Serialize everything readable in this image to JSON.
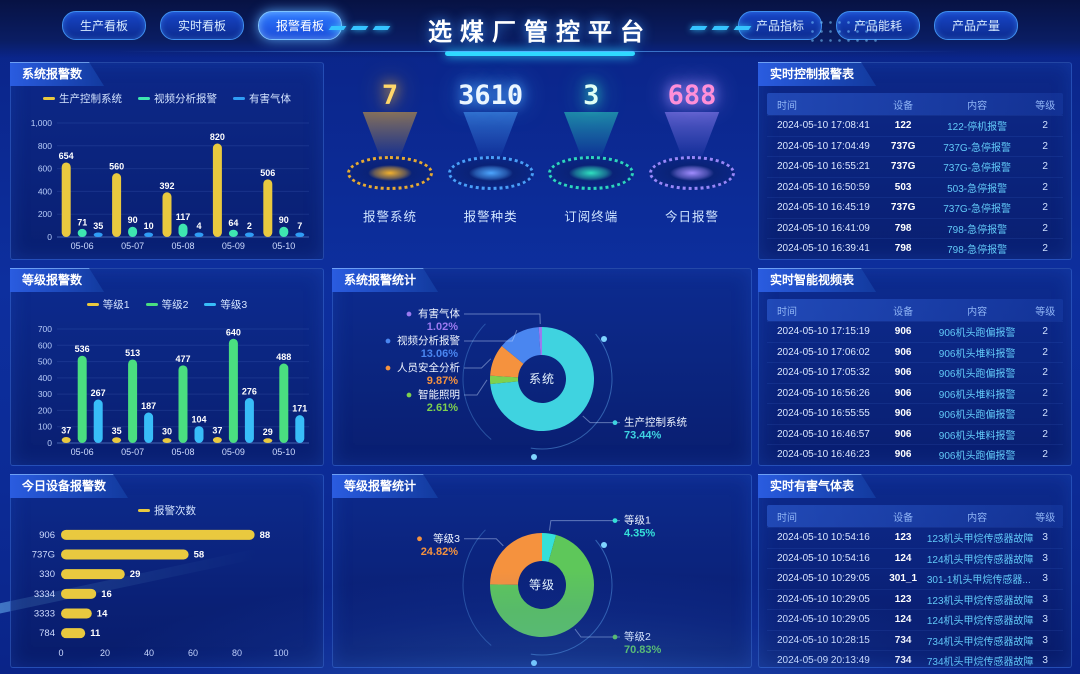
{
  "header": {
    "title": "选煤厂管控平台",
    "nav_left": [
      "生产看板",
      "实时看板",
      "报警看板"
    ],
    "active_left_index": 2,
    "nav_right": [
      "产品指标",
      "产品能耗",
      "产品产量"
    ]
  },
  "stats": [
    {
      "value": "7",
      "label": "报警系统",
      "color": "#f2b12e",
      "value_color": "#ffd76a"
    },
    {
      "value": "3610",
      "label": "报警种类",
      "color": "#4da6ff",
      "value_color": "#eaf6ff"
    },
    {
      "value": "3",
      "label": "订阅终端",
      "color": "#2fe0c0",
      "value_color": "#dffff5"
    },
    {
      "value": "688",
      "label": "今日报警",
      "color": "#a08cff",
      "value_color": "#ff8fd8"
    }
  ],
  "chart_data": [
    {
      "id": "system-alarm-bar",
      "type": "bar",
      "title": "系统报警数",
      "categories": [
        "05-06",
        "05-07",
        "05-08",
        "05-09",
        "05-10"
      ],
      "series": [
        {
          "name": "生产控制系统",
          "color": "#e9c93f",
          "values": [
            654,
            560,
            392,
            820,
            506
          ]
        },
        {
          "name": "视频分析报警",
          "color": "#3ee6b0",
          "values": [
            71,
            90,
            117,
            64,
            90
          ]
        },
        {
          "name": "有害气体",
          "color": "#2f9df5",
          "values": [
            35,
            10,
            4,
            2,
            7
          ]
        }
      ],
      "ylim": [
        0,
        1000
      ],
      "yticks": [
        "0",
        "200",
        "400",
        "600",
        "800",
        "1,000"
      ],
      "legend_position": "top",
      "grid": true
    },
    {
      "id": "level-alarm-bar",
      "type": "bar",
      "title": "等级报警数",
      "categories": [
        "05-06",
        "05-07",
        "05-08",
        "05-09",
        "05-10"
      ],
      "series": [
        {
          "name": "等级1",
          "color": "#e9c93f",
          "values": [
            37,
            35,
            30,
            37,
            29
          ]
        },
        {
          "name": "等级2",
          "color": "#4ade80",
          "values": [
            536,
            513,
            477,
            640,
            488
          ]
        },
        {
          "name": "等级3",
          "color": "#38bdf8",
          "values": [
            267,
            187,
            104,
            276,
            171
          ]
        }
      ],
      "ylim": [
        0,
        700
      ],
      "yticks": [
        "0",
        "100",
        "200",
        "300",
        "400",
        "500",
        "600",
        "700"
      ],
      "legend_position": "top",
      "grid": true
    },
    {
      "id": "device-alarm-hbar",
      "type": "bar",
      "orientation": "horizontal",
      "title": "今日设备报警数",
      "legend": "报警次数",
      "color": "#e9c93f",
      "categories": [
        "906",
        "737G",
        "330",
        "3334",
        "3333",
        "784"
      ],
      "values": [
        88,
        58,
        29,
        16,
        14,
        11
      ],
      "xlim": [
        0,
        100
      ],
      "xticks": [
        "0",
        "20",
        "40",
        "60",
        "80",
        "100"
      ],
      "legend_position": "top"
    },
    {
      "id": "system-alarm-pie",
      "type": "pie",
      "title": "系统报警统计",
      "center_label": "系统",
      "slices": [
        {
          "name": "生产控制系统",
          "pct": 73.44,
          "color": "#3fd3e0"
        },
        {
          "name": "智能照明",
          "pct": 2.61,
          "color": "#7ed14e"
        },
        {
          "name": "人员安全分析",
          "pct": 9.87,
          "color": "#f5923e"
        },
        {
          "name": "视频分析报警",
          "pct": 13.06,
          "color": "#4a86f0"
        },
        {
          "name": "有害气体",
          "pct": 1.02,
          "color": "#9b7af0"
        }
      ]
    },
    {
      "id": "level-alarm-pie",
      "type": "pie",
      "title": "等级报警统计",
      "center_label": "等级",
      "slices": [
        {
          "name": "等级1",
          "pct": 4.35,
          "color": "#35e0d8"
        },
        {
          "name": "等级2",
          "pct": 70.83,
          "color": "#5ec75a"
        },
        {
          "name": "等级3",
          "pct": 24.82,
          "color": "#f5923e"
        }
      ]
    }
  ],
  "tables": {
    "control": {
      "title": "实时控制报警表",
      "headers": [
        "时间",
        "设备",
        "内容",
        "等级"
      ],
      "rows": [
        [
          "2024-05-10 17:08:41",
          "122",
          "122-停机报警",
          "2"
        ],
        [
          "2024-05-10 17:04:49",
          "737G",
          "737G-急停报警",
          "2"
        ],
        [
          "2024-05-10 16:55:21",
          "737G",
          "737G-急停报警",
          "2"
        ],
        [
          "2024-05-10 16:50:59",
          "503",
          "503-急停报警",
          "2"
        ],
        [
          "2024-05-10 16:45:19",
          "737G",
          "737G-急停报警",
          "2"
        ],
        [
          "2024-05-10 16:41:09",
          "798",
          "798-急停报警",
          "2"
        ],
        [
          "2024-05-10 16:39:41",
          "798",
          "798-急停报警",
          "2"
        ]
      ]
    },
    "video": {
      "title": "实时智能视频表",
      "headers": [
        "时间",
        "设备",
        "内容",
        "等级"
      ],
      "rows": [
        [
          "2024-05-10 17:15:19",
          "906",
          "906机头跑偏报警",
          "2"
        ],
        [
          "2024-05-10 17:06:02",
          "906",
          "906机头堆料报警",
          "2"
        ],
        [
          "2024-05-10 17:05:32",
          "906",
          "906机头跑偏报警",
          "2"
        ],
        [
          "2024-05-10 16:56:26",
          "906",
          "906机头堆料报警",
          "2"
        ],
        [
          "2024-05-10 16:55:55",
          "906",
          "906机头跑偏报警",
          "2"
        ],
        [
          "2024-05-10 16:46:57",
          "906",
          "906机头堆料报警",
          "2"
        ],
        [
          "2024-05-10 16:46:23",
          "906",
          "906机头跑偏报警",
          "2"
        ]
      ]
    },
    "gas": {
      "title": "实时有害气体表",
      "headers": [
        "时间",
        "设备",
        "内容",
        "等级"
      ],
      "rows": [
        [
          "2024-05-10 10:54:16",
          "123",
          "123机头甲烷传感器故障",
          "3"
        ],
        [
          "2024-05-10 10:54:16",
          "124",
          "124机头甲烷传感器故障",
          "3"
        ],
        [
          "2024-05-10 10:29:05",
          "301_1",
          "301-1机头甲烷传感器...",
          "3"
        ],
        [
          "2024-05-10 10:29:05",
          "123",
          "123机头甲烷传感器故障",
          "3"
        ],
        [
          "2024-05-10 10:29:05",
          "124",
          "124机头甲烷传感器故障",
          "3"
        ],
        [
          "2024-05-10 10:28:15",
          "734",
          "734机头甲烷传感器故障",
          "3"
        ],
        [
          "2024-05-09 20:13:49",
          "734",
          "734机头甲烷传感器故障",
          "3"
        ]
      ]
    }
  }
}
